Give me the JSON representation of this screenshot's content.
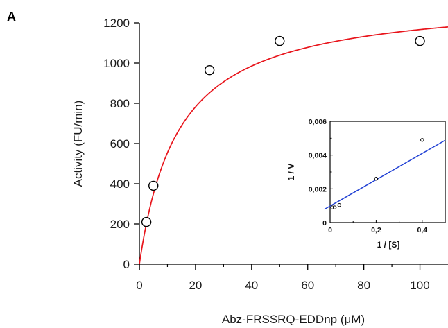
{
  "panel_label": "A",
  "colors": {
    "fit": "#e8141b",
    "inset_fit": "#1f3fd4",
    "axis": "#000000"
  },
  "chart_data": [
    {
      "type": "scatter",
      "xlabel": "Abz-FRSSRQ-EDDnp (μM)",
      "ylabel": "Activity (FU/min)",
      "xlim": [
        0,
        110
      ],
      "ylim": [
        0,
        1200
      ],
      "xticks": [
        0,
        20,
        40,
        60,
        80,
        100
      ],
      "yticks": [
        0,
        200,
        400,
        600,
        800,
        1000,
        1200
      ],
      "xtick_labels": [
        "0",
        "20",
        "40",
        "60",
        "80",
        "100"
      ],
      "ytick_labels": [
        "0",
        "200",
        "400",
        "600",
        "800",
        "1000",
        "1200"
      ],
      "series": [
        {
          "marker": "open-circle",
          "x": [
            2.5,
            5,
            25,
            50,
            100
          ],
          "y": [
            210,
            390,
            965,
            1110,
            1110
          ]
        }
      ],
      "fit": {
        "model": "michaelis-menten",
        "vmax": 1330,
        "km": 14,
        "color": "#e8141b"
      },
      "grid": false
    },
    {
      "type": "scatter",
      "inset": true,
      "xlabel": "1 / [S]",
      "ylabel": "1 / V",
      "xlim": [
        0,
        0.5
      ],
      "ylim": [
        0,
        0.006
      ],
      "xticks": [
        0,
        0.2,
        0.4
      ],
      "yticks": [
        0,
        0.002,
        0.004,
        0.006
      ],
      "xtick_labels": [
        "0",
        "0,2",
        "0,4"
      ],
      "ytick_labels": [
        "0",
        "0,002",
        "0,004",
        "0,006"
      ],
      "series": [
        {
          "marker": "open-circle-small",
          "x": [
            0.01,
            0.02,
            0.04,
            0.2,
            0.4
          ],
          "y": [
            0.0009,
            0.0009,
            0.00104,
            0.0026,
            0.0049
          ]
        }
      ],
      "fit": {
        "model": "linear",
        "intercept": 0.00098,
        "slope": 0.0078,
        "color": "#1f3fd4"
      },
      "grid": false
    }
  ]
}
